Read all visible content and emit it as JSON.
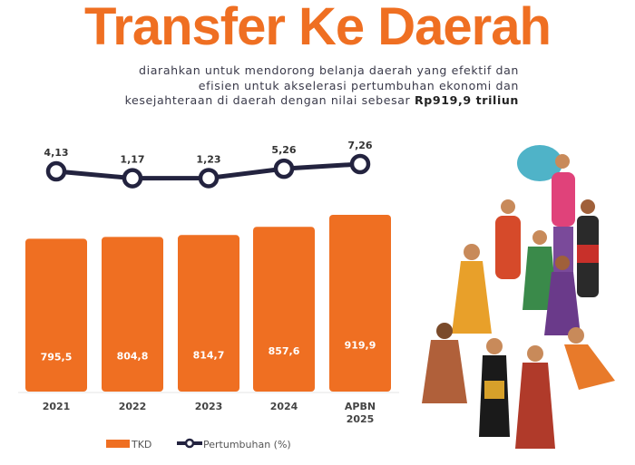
{
  "header": {
    "title": "Transfer Ke Daerah",
    "subtitle_line1": "diarahkan untuk mendorong belanja daerah yang efektif dan",
    "subtitle_line2": "efisien untuk akselerasi pertumbuhan ekonomi dan",
    "subtitle_line3": "kesejahteraan di daerah dengan nilai sebesar ",
    "subtitle_highlight": "Rp919,9 triliun"
  },
  "colors": {
    "bar": "#ef6f22",
    "line": "#23233f",
    "title": "#ef6f22"
  },
  "chart_data": {
    "type": "bar",
    "categories": [
      "2021",
      "2022",
      "2023",
      "2024",
      "APBN 2025"
    ],
    "series": [
      {
        "name": "TKD",
        "type": "bar",
        "values": [
          795.5,
          804.8,
          814.7,
          857.6,
          919.9
        ],
        "labels": [
          "795,5",
          "804,8",
          "814,7",
          "857,6",
          "919,9"
        ]
      },
      {
        "name": "Pertumbuhan (%)",
        "type": "line",
        "values": [
          4.13,
          1.17,
          1.23,
          5.26,
          7.26
        ],
        "labels": [
          "4,13",
          "1,17",
          "1,23",
          "5,26",
          "7,26"
        ]
      }
    ],
    "legend": {
      "position": "bottom",
      "items": [
        "TKD",
        "Pertumbuhan (%)"
      ]
    },
    "ylim": [
      0,
      1000
    ]
  }
}
